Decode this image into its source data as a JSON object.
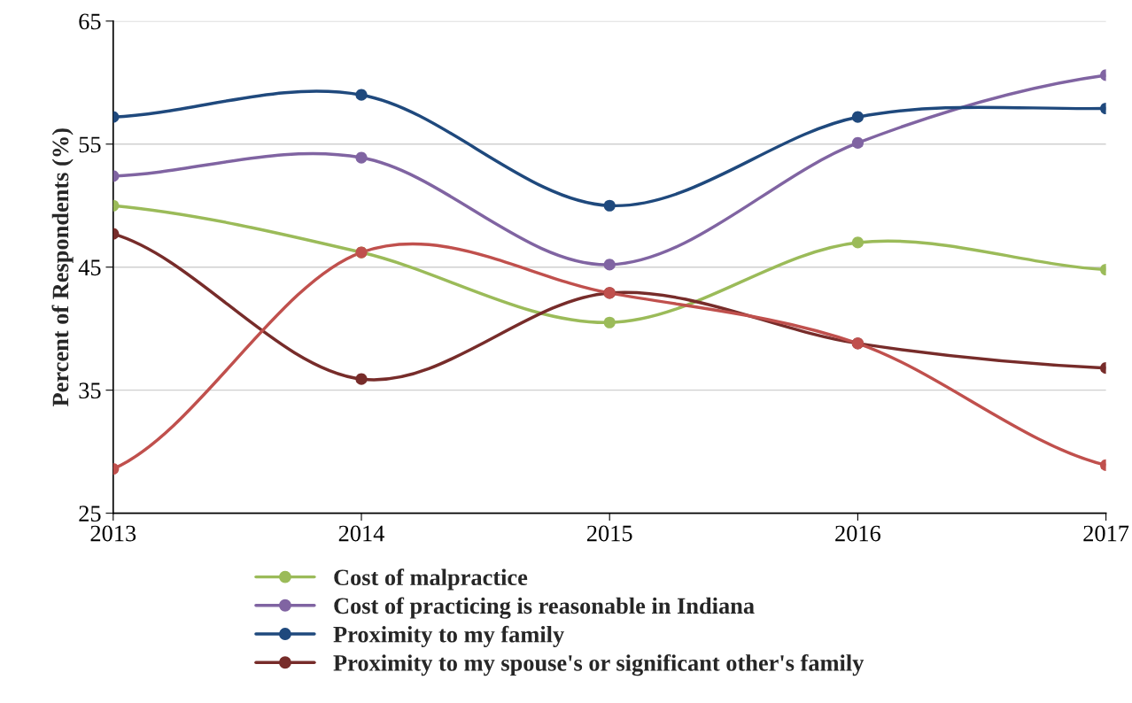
{
  "chart_data": {
    "type": "line",
    "ylabel": "Percent of Respondents (%)",
    "categories": [
      "2013",
      "2014",
      "2015",
      "2016",
      "2017"
    ],
    "ylim": [
      25,
      65
    ],
    "yticks": [
      25,
      35,
      45,
      55,
      65
    ],
    "grid": "y",
    "legend": "bottom",
    "marker": "circle",
    "line_style": "solid",
    "series": [
      {
        "name": "Cost of malpractice",
        "color": "#9bbb59",
        "values": [
          50.0,
          46.2,
          40.5,
          47.0,
          44.8
        ]
      },
      {
        "name": "Cost of practicing is reasonable in Indiana",
        "color": "#8064a2",
        "values": [
          52.4,
          53.9,
          45.2,
          55.1,
          60.6
        ]
      },
      {
        "name": "Proximity to my family",
        "color": "#1f497d",
        "values": [
          57.2,
          59.0,
          50.0,
          57.2,
          57.9
        ]
      },
      {
        "name": "Proximity to my spouse's or significant other's family",
        "color": "#772c2a",
        "values": [
          47.7,
          35.9,
          42.9,
          38.8,
          36.8
        ]
      },
      {
        "color": "#c0504d",
        "values": [
          28.6,
          46.2,
          42.9,
          38.8,
          28.9
        ]
      }
    ]
  }
}
